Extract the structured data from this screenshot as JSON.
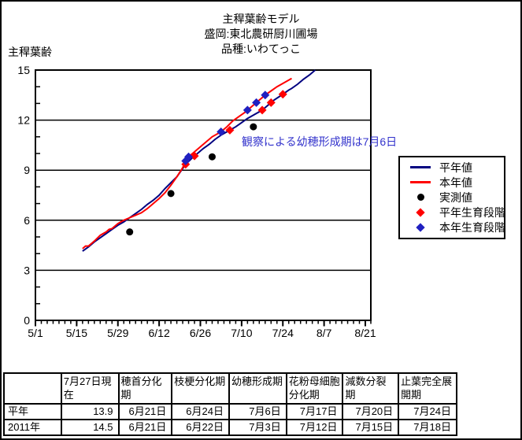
{
  "header": {
    "lines": [
      "主稈葉齢モデル",
      "盛岡:東北農研厨川圃場",
      "品種:いわてっこ"
    ]
  },
  "annotation": {
    "text": "観察による幼穂形成期は7月6日",
    "color": "#3333CC"
  },
  "chart_data": {
    "type": "line",
    "title": "主稈葉齢モデル",
    "subtitle": [
      "盛岡:東北農研厨川圃場",
      "品種:いわてっこ"
    ],
    "ylabel": "主稈葉齢",
    "xlabel": "",
    "ylim": [
      0,
      15
    ],
    "y_ticks": [
      0,
      3,
      6,
      9,
      12,
      15
    ],
    "y_minor_tick_step": 1,
    "x_day0_date": "5/1",
    "x_tick_labels": [
      "5/1",
      "5/15",
      "5/29",
      "6/12",
      "6/26",
      "7/10",
      "7/24",
      "8/7",
      "8/21"
    ],
    "x_tick_days": [
      0,
      14,
      28,
      42,
      56,
      70,
      84,
      98,
      112
    ],
    "x_minor_tick_step_days": 2,
    "grid": "horizontal-major-only",
    "legend_position": "right",
    "series": [
      {
        "name": "平年値",
        "kind": "line",
        "marker": "none",
        "color": "#000080",
        "points": [
          [
            16,
            4.15
          ],
          [
            18,
            4.4
          ],
          [
            20,
            4.7
          ],
          [
            22,
            4.95
          ],
          [
            24,
            5.2
          ],
          [
            26,
            5.45
          ],
          [
            28,
            5.7
          ],
          [
            30,
            5.9
          ],
          [
            32,
            6.15
          ],
          [
            34,
            6.4
          ],
          [
            36,
            6.65
          ],
          [
            38,
            6.95
          ],
          [
            40,
            7.2
          ],
          [
            42,
            7.5
          ],
          [
            44,
            7.9
          ],
          [
            46,
            8.25
          ],
          [
            48,
            8.6
          ],
          [
            50,
            9.1
          ],
          [
            51,
            9.35
          ],
          [
            53,
            9.7
          ],
          [
            55,
            10.0
          ],
          [
            57,
            10.3
          ],
          [
            59,
            10.55
          ],
          [
            61,
            10.85
          ],
          [
            63,
            11.1
          ],
          [
            66,
            11.4
          ],
          [
            68,
            11.6
          ],
          [
            70,
            11.85
          ],
          [
            72,
            12.1
          ],
          [
            74,
            12.3
          ],
          [
            77,
            12.6
          ],
          [
            79,
            12.9
          ],
          [
            81,
            13.2
          ],
          [
            84,
            13.55
          ],
          [
            86,
            13.8
          ],
          [
            87,
            13.9
          ],
          [
            89,
            14.15
          ],
          [
            91,
            14.45
          ],
          [
            93,
            14.7
          ],
          [
            95,
            15.0
          ]
        ]
      },
      {
        "name": "本年値",
        "kind": "line",
        "marker": "none",
        "color": "#FF0000",
        "points": [
          [
            16,
            4.3
          ],
          [
            17,
            4.45
          ],
          [
            18,
            4.45
          ],
          [
            20,
            4.75
          ],
          [
            22,
            5.1
          ],
          [
            24,
            5.3
          ],
          [
            25,
            5.45
          ],
          [
            26,
            5.5
          ],
          [
            28,
            5.8
          ],
          [
            30,
            6.0
          ],
          [
            32,
            6.15
          ],
          [
            34,
            6.3
          ],
          [
            36,
            6.45
          ],
          [
            38,
            6.7
          ],
          [
            40,
            7.0
          ],
          [
            42,
            7.3
          ],
          [
            44,
            7.65
          ],
          [
            46,
            8.1
          ],
          [
            48,
            8.6
          ],
          [
            50,
            9.15
          ],
          [
            51,
            9.55
          ],
          [
            52,
            9.8
          ],
          [
            54,
            10.1
          ],
          [
            56,
            10.4
          ],
          [
            58,
            10.7
          ],
          [
            60,
            11.0
          ],
          [
            63,
            11.3
          ],
          [
            65,
            11.6
          ],
          [
            67,
            11.95
          ],
          [
            69,
            12.2
          ],
          [
            71,
            12.45
          ],
          [
            73,
            12.75
          ],
          [
            75,
            13.05
          ],
          [
            77,
            13.35
          ],
          [
            78,
            13.5
          ],
          [
            80,
            13.75
          ],
          [
            82,
            14.0
          ],
          [
            84,
            14.2
          ],
          [
            86,
            14.4
          ],
          [
            87,
            14.5
          ]
        ]
      },
      {
        "name": "実測値",
        "kind": "scatter",
        "marker": "circle",
        "color": "#000000",
        "dates": [
          "6/2",
          "6/16",
          "6/30",
          "7/14"
        ],
        "points": [
          [
            32,
            5.3
          ],
          [
            46,
            7.6
          ],
          [
            60,
            9.8
          ],
          [
            74,
            11.6
          ]
        ]
      },
      {
        "name": "平年生育段階",
        "kind": "scatter",
        "marker": "diamond",
        "color": "#FF0000",
        "dates": [
          "6月21日",
          "6月24日",
          "7月6日",
          "7月17日",
          "7月20日",
          "7月24日"
        ],
        "points": [
          [
            51,
            9.35
          ],
          [
            54,
            9.85
          ],
          [
            66,
            11.4
          ],
          [
            77,
            12.6
          ],
          [
            80,
            13.05
          ],
          [
            84,
            13.55
          ]
        ]
      },
      {
        "name": "本年生育段階",
        "kind": "scatter",
        "marker": "diamond",
        "color": "#2020C0",
        "dates": [
          "6月21日",
          "6月22日",
          "7月3日",
          "7月12日",
          "7月15日",
          "7月18日"
        ],
        "points": [
          [
            51,
            9.55
          ],
          [
            52,
            9.8
          ],
          [
            63,
            11.3
          ],
          [
            72,
            12.6
          ],
          [
            75,
            13.05
          ],
          [
            78,
            13.5
          ]
        ]
      }
    ]
  },
  "table": {
    "headers": [
      "",
      "7月27日現在",
      "穂首分化期",
      "枝梗分化期",
      "幼穂形成期",
      "花粉母細胞分化期",
      "減数分裂期",
      "止葉完全展開期"
    ],
    "rows": [
      {
        "label": "平年",
        "values": [
          "13.9",
          "6月21日",
          "6月24日",
          "7月6日",
          "7月17日",
          "7月20日",
          "7月24日"
        ]
      },
      {
        "label": "2011年",
        "values": [
          "14.5",
          "6月21日",
          "6月22日",
          "7月3日",
          "7月12日",
          "7月15日",
          "7月18日"
        ]
      }
    ]
  }
}
